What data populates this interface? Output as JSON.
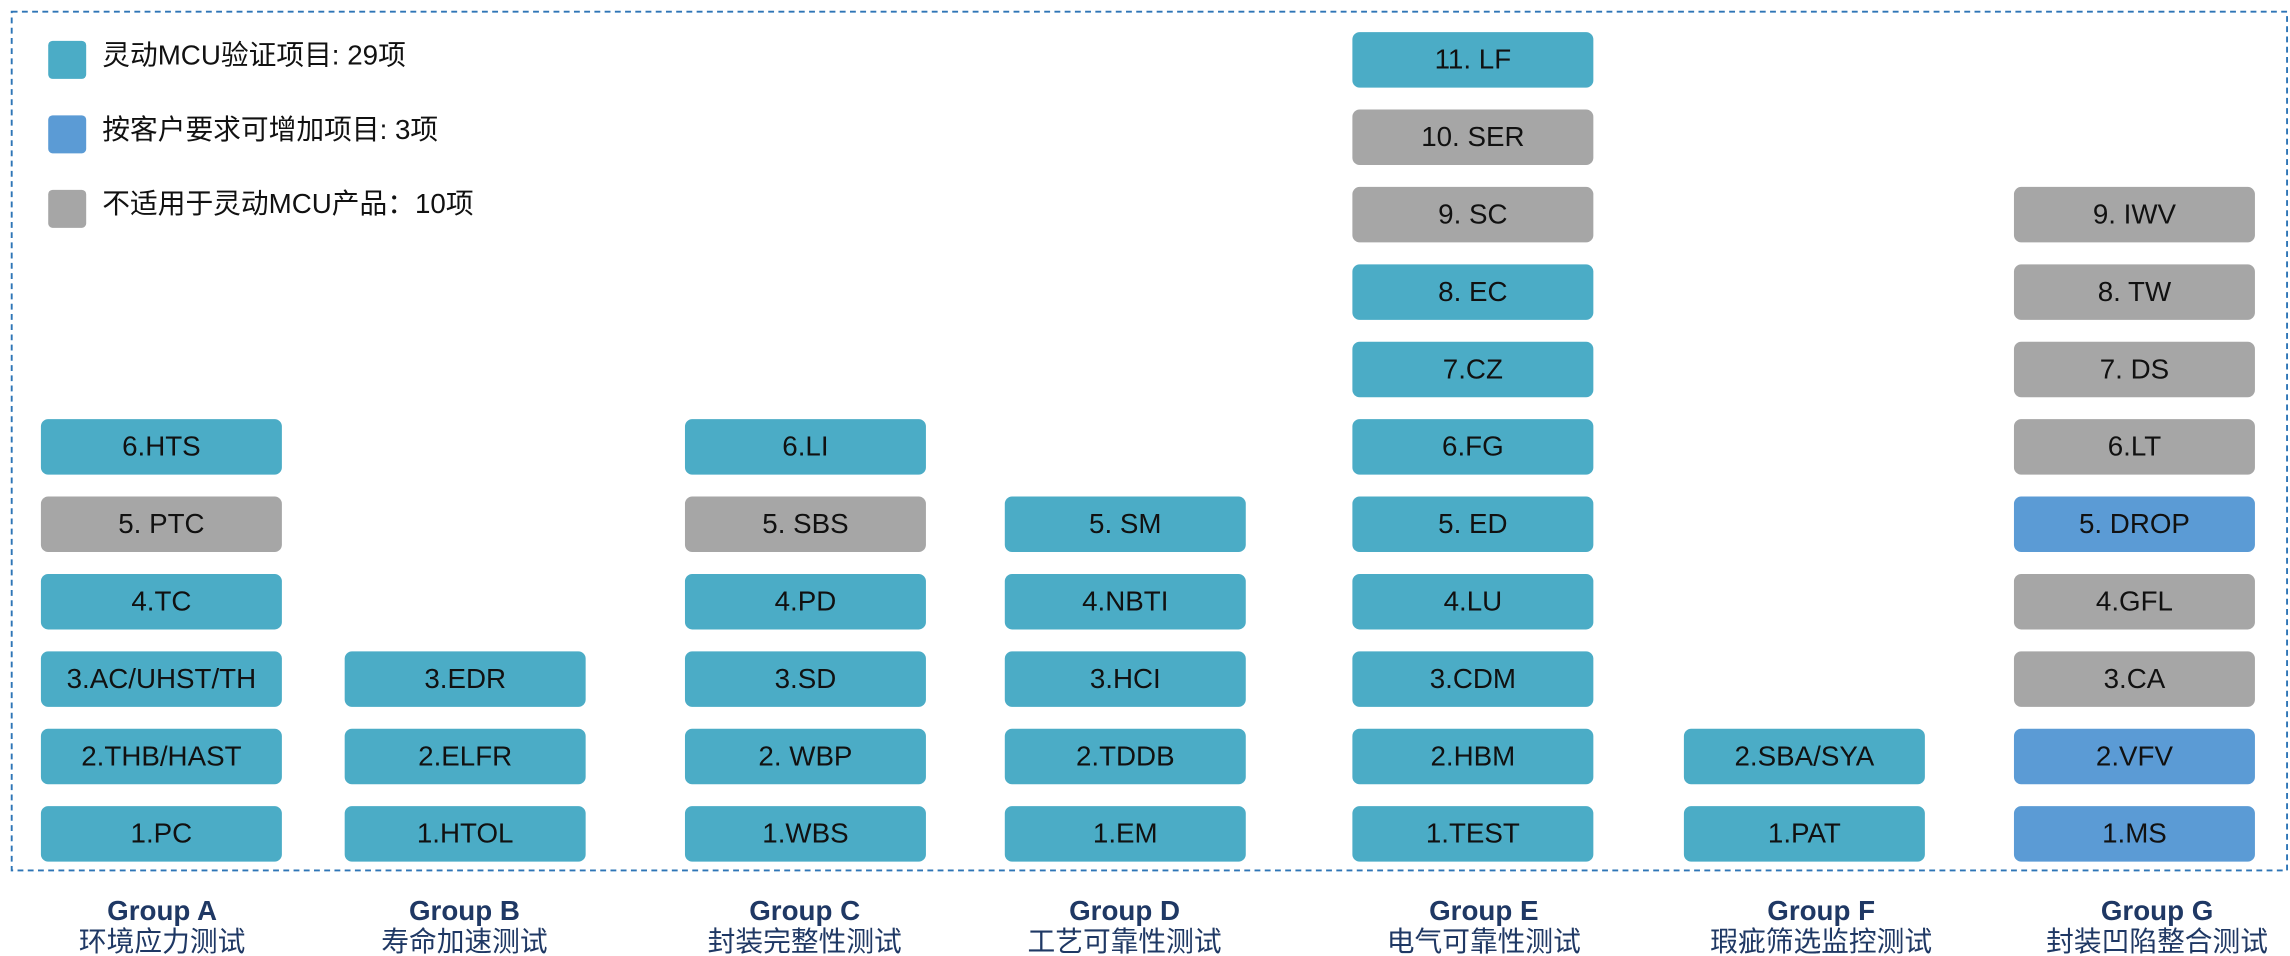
{
  "legend": [
    {
      "label": "灵动MCU验证项目: 29项",
      "color": "#4bacc6"
    },
    {
      "label": "按客户要求可增加项目: 3项",
      "color": "#5b9bd5"
    },
    {
      "label": "不适用于灵动MCU产品：10项",
      "color": "#a6a6a6"
    }
  ],
  "groups": [
    {
      "title": "Group A",
      "subtitle": "环境应力测试",
      "items": [
        {
          "label": "1.PC",
          "color": "#4bacc6"
        },
        {
          "label": "2.THB/HAST",
          "color": "#4bacc6"
        },
        {
          "label": "3.AC/UHST/TH",
          "color": "#4bacc6"
        },
        {
          "label": "4.TC",
          "color": "#4bacc6"
        },
        {
          "label": "5. PTC",
          "color": "#a6a6a6"
        },
        {
          "label": "6.HTS",
          "color": "#4bacc6"
        }
      ]
    },
    {
      "title": "Group B",
      "subtitle": "寿命加速测试",
      "items": [
        {
          "label": "1.HTOL",
          "color": "#4bacc6"
        },
        {
          "label": "2.ELFR",
          "color": "#4bacc6"
        },
        {
          "label": "3.EDR",
          "color": "#4bacc6"
        }
      ]
    },
    {
      "title": "Group C",
      "subtitle": "封装完整性测试",
      "items": [
        {
          "label": "1.WBS",
          "color": "#4bacc6"
        },
        {
          "label": "2. WBP",
          "color": "#4bacc6"
        },
        {
          "label": "3.SD",
          "color": "#4bacc6"
        },
        {
          "label": "4.PD",
          "color": "#4bacc6"
        },
        {
          "label": "5. SBS",
          "color": "#a6a6a6"
        },
        {
          "label": "6.LI",
          "color": "#4bacc6"
        }
      ]
    },
    {
      "title": "Group D",
      "subtitle": "工艺可靠性测试",
      "items": [
        {
          "label": "1.EM",
          "color": "#4bacc6"
        },
        {
          "label": "2.TDDB",
          "color": "#4bacc6"
        },
        {
          "label": "3.HCI",
          "color": "#4bacc6"
        },
        {
          "label": "4.NBTI",
          "color": "#4bacc6"
        },
        {
          "label": "5. SM",
          "color": "#4bacc6"
        }
      ]
    },
    {
      "title": "Group E",
      "subtitle": "电气可靠性测试",
      "items": [
        {
          "label": "1.TEST",
          "color": "#4bacc6"
        },
        {
          "label": "2.HBM",
          "color": "#4bacc6"
        },
        {
          "label": "3.CDM",
          "color": "#4bacc6"
        },
        {
          "label": "4.LU",
          "color": "#4bacc6"
        },
        {
          "label": "5. ED",
          "color": "#4bacc6"
        },
        {
          "label": "6.FG",
          "color": "#4bacc6"
        },
        {
          "label": "7.CZ",
          "color": "#4bacc6"
        },
        {
          "label": "8. EC",
          "color": "#4bacc6"
        },
        {
          "label": "9. SC",
          "color": "#a6a6a6"
        },
        {
          "label": "10. SER",
          "color": "#a6a6a6"
        },
        {
          "label": "11. LF",
          "color": "#4bacc6"
        }
      ]
    },
    {
      "title": "Group F",
      "subtitle": "瑕疵筛选监控测试",
      "items": [
        {
          "label": "1.PAT",
          "color": "#4bacc6"
        },
        {
          "label": "2.SBA/SYA",
          "color": "#4bacc6"
        }
      ]
    },
    {
      "title": "Group G",
      "subtitle": "封装凹陷整合测试",
      "items": [
        {
          "label": "1.MS",
          "color": "#5b9bd5"
        },
        {
          "label": "2.VFV",
          "color": "#5b9bd5"
        },
        {
          "label": "3.CA",
          "color": "#a6a6a6"
        },
        {
          "label": "4.GFL",
          "color": "#a6a6a6"
        },
        {
          "label": "5. DROP",
          "color": "#5b9bd5"
        },
        {
          "label": "6.LT",
          "color": "#a6a6a6"
        },
        {
          "label": "7. DS",
          "color": "#a6a6a6"
        },
        {
          "label": "8. TW",
          "color": "#a6a6a6"
        },
        {
          "label": "9. IWV",
          "color": "#a6a6a6"
        }
      ]
    }
  ]
}
